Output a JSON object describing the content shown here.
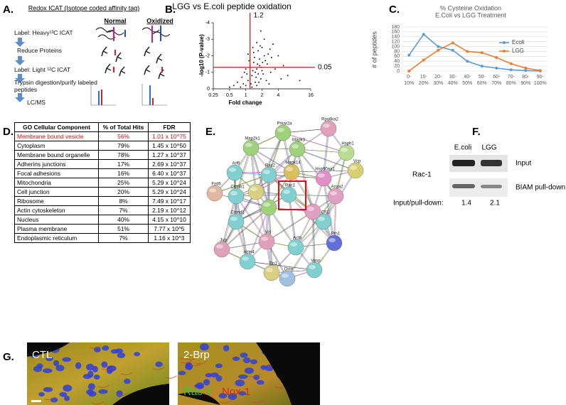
{
  "panel_labels": [
    "A.",
    "B.",
    "C.",
    "D.",
    "E.",
    "F.",
    "G."
  ],
  "icat": {
    "title": "Redox ICAT (Isotope coded affinity tag)",
    "conditions": [
      "Normal",
      "Oxidized"
    ],
    "steps": [
      "Label: Heavy¹³C ICAT",
      "Reduce Proteins",
      "Label: Light ¹²C ICAT",
      "Trypsin digestion/purify labeled peptides",
      "LC/MS"
    ]
  },
  "chart_data": [
    {
      "type": "scatter",
      "title": "LGG vs E.coli peptide oxidation",
      "x_label": "Fold change",
      "y_label": "-log10 (P-value)",
      "x_scale": "log",
      "x": [
        1.0,
        1.1,
        1.3,
        1.5,
        1.2,
        1.4,
        1.6,
        1.8,
        2.0,
        2.2,
        1.7,
        1.9,
        2.5,
        2.8,
        3.0,
        0.9,
        0.8,
        0.7,
        0.6,
        1.05,
        1.25,
        1.35,
        1.45,
        1.55,
        1.65,
        1.75,
        1.85,
        1.95,
        2.1,
        2.3,
        2.4,
        2.6,
        3.5,
        4.0,
        5.0,
        6.0,
        1.9,
        2.2,
        1.6,
        3.2,
        1.15,
        0.95,
        1.3,
        1.5,
        2.7,
        1.1,
        0.85,
        2.0,
        1.4,
        1.7,
        0.5,
        10,
        1.2,
        1.6,
        2.9,
        1.8,
        2.05,
        1.35,
        4.5,
        1.0
      ],
      "values": [
        -0.2,
        -0.5,
        -0.8,
        -1.0,
        -1.4,
        -1.6,
        -1.2,
        -1.8,
        -1.1,
        -2.0,
        -2.3,
        -0.6,
        -1.5,
        -2.4,
        -1.9,
        -0.3,
        -0.1,
        -0.4,
        -0.2,
        -0.9,
        -0.3,
        -1.1,
        -1.9,
        -0.7,
        -1.5,
        -0.4,
        -2.6,
        -1.3,
        -0.9,
        -1.7,
        -0.5,
        -2.1,
        -1.2,
        -2.0,
        -1.4,
        -0.8,
        -3.5,
        -3.0,
        -2.8,
        -2.7,
        -1.7,
        -1.0,
        -0.1,
        -0.4,
        -0.3,
        -2.1,
        -0.7,
        -2.5,
        -2.2,
        -0.9,
        -0.1,
        -0.5,
        -0.6,
        -0.2,
        -1.0,
        -1.4,
        -1.6,
        -2.5,
        -0.6,
        -1.2
      ],
      "color": "#000000",
      "xlim": [
        0.25,
        16
      ],
      "xticks": [
        0.25,
        0.5,
        1,
        2,
        4,
        16
      ],
      "ylim": [
        0,
        -4
      ],
      "yticks": [
        0,
        -1,
        -2,
        -3,
        -4
      ],
      "vline": 1.2,
      "hline_p": 0.05,
      "threshold_color": "#d42020"
    },
    {
      "type": "line",
      "title": "% Cysteine Oxidation",
      "subtitle": "E.Coli vs LGG Treatment",
      "y_label": "# of peptides",
      "categories": [
        "0-10%",
        "10-20%",
        "20-30%",
        "30-40%",
        "40-50%",
        "50-60%",
        "60-70%",
        "70-80%",
        "80-90%",
        "90-100%"
      ],
      "series": [
        {
          "name": "Ecoli",
          "color": "#5b9bd5",
          "values": [
            65,
            150,
            100,
            85,
            40,
            20,
            12,
            5,
            2,
            0
          ]
        },
        {
          "name": "LGG",
          "color": "#ed7d31",
          "values": [
            0,
            45,
            85,
            115,
            80,
            75,
            55,
            30,
            12,
            2
          ]
        }
      ],
      "ylim": [
        0,
        180
      ],
      "yticks": [
        0,
        20,
        40,
        60,
        80,
        100,
        120,
        140,
        160,
        180
      ],
      "grid": true,
      "legend": "right"
    }
  ],
  "go_table": {
    "header": [
      "GO Cellular Component",
      "% of Total Hits",
      "FDR"
    ],
    "rows": [
      [
        "Membrane bound vesicle",
        "56%",
        "1.01 x 10^75"
      ],
      [
        "Cytoplasm",
        "79%",
        "1.45 x 10^50"
      ],
      [
        "Membrane bound organelle",
        "78%",
        "1.27 x 10^37"
      ],
      [
        "Adherins junctions",
        "17%",
        "2.69 x 10^37"
      ],
      [
        "Focal adhesions",
        "16%",
        "6.40 x 10^37"
      ],
      [
        "Mitochondria",
        "25%",
        "5.29 x 10^24"
      ],
      [
        "Cell junction",
        "20%",
        "5.29 x 10^24"
      ],
      [
        "Ribosome",
        "8%",
        "7.49 x 10^17"
      ],
      [
        "Actin cytoskeleton",
        "7%",
        "2.19 x 10^12"
      ],
      [
        "Nucleus",
        "40%",
        "4.15 x 10^10"
      ],
      [
        "Plasma membrane",
        "51%",
        "7.77 x 10^5"
      ],
      [
        "Endoplasmic reticulum",
        "7%",
        "1.16 x 10^3"
      ]
    ]
  },
  "network": {
    "nodes": [
      "Prkar2a",
      "Rps6ka2",
      "Map2k1",
      "Mapk3",
      "Hsph1",
      "Vcp",
      "Arf6",
      "Rac2",
      "Mapk14",
      "Hsp90aa1",
      "Fzd6",
      "Ctnnb1",
      "Rac1",
      "Anxa2",
      "Ctnnd1",
      "Cfl1",
      "Pfn1",
      "Jup",
      "Vcl",
      "Actb",
      "Actn4",
      "Vasp",
      "Tln1",
      "Dstn"
    ]
  },
  "western_blot": {
    "lanes": [
      "E.coli",
      "LGG"
    ],
    "protein": "Rac-1",
    "rows": [
      "Input",
      "BIAM pull-down"
    ],
    "ratio_label": "Input/pull-down:",
    "ratios": [
      1.4,
      2.1
    ]
  },
  "microscopy": {
    "conditions": [
      "CTL",
      "2-Brp"
    ],
    "stains": [
      "Rac-1",
      "Nox-1"
    ]
  }
}
